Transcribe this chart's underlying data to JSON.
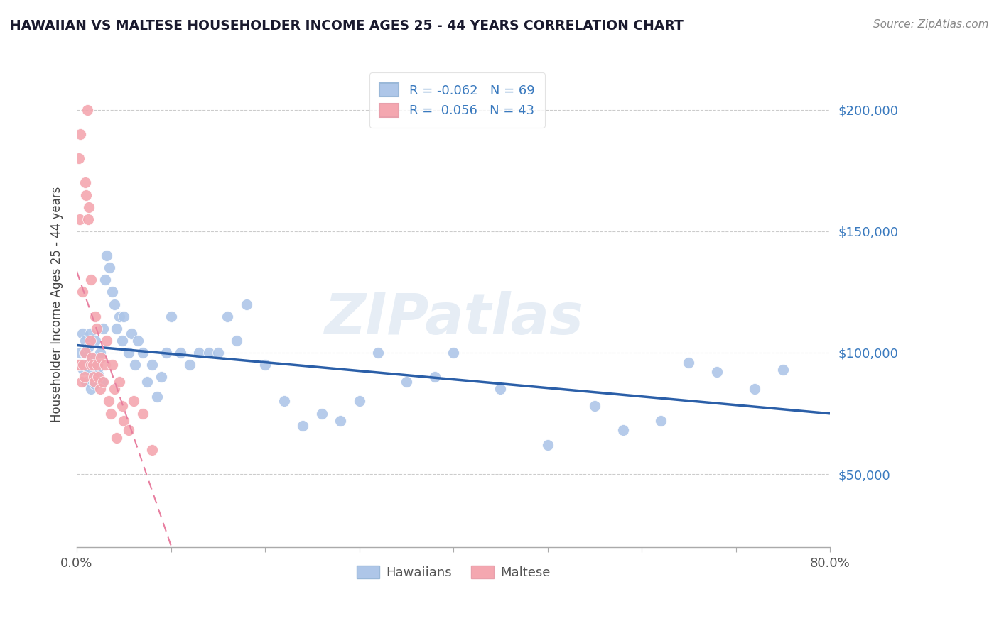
{
  "title": "HAWAIIAN VS MALTESE HOUSEHOLDER INCOME AGES 25 - 44 YEARS CORRELATION CHART",
  "source_text": "Source: ZipAtlas.com",
  "ylabel": "Householder Income Ages 25 - 44 years",
  "xlim": [
    0.0,
    0.8
  ],
  "ylim": [
    20000,
    220000
  ],
  "yticks": [
    50000,
    100000,
    150000,
    200000
  ],
  "ytick_labels": [
    "$50,000",
    "$100,000",
    "$150,000",
    "$200,000"
  ],
  "xticks": [
    0.0,
    0.1,
    0.2,
    0.3,
    0.4,
    0.5,
    0.6,
    0.7,
    0.8
  ],
  "xtick_labels": [
    "0.0%",
    "",
    "",
    "",
    "",
    "",
    "",
    "",
    "80.0%"
  ],
  "hawaiians_color": "#aec6e8",
  "maltese_color": "#f4a7b0",
  "hawaiians_line_color": "#2b5fa8",
  "maltese_line_color": "#e87fa0",
  "r_hawaiians": -0.062,
  "n_hawaiians": 69,
  "r_maltese": 0.056,
  "n_maltese": 43,
  "watermark": "ZIPatlas",
  "hawaiians_x": [
    0.004,
    0.005,
    0.006,
    0.007,
    0.008,
    0.009,
    0.01,
    0.011,
    0.012,
    0.013,
    0.014,
    0.015,
    0.016,
    0.017,
    0.018,
    0.019,
    0.02,
    0.022,
    0.023,
    0.025,
    0.027,
    0.028,
    0.03,
    0.032,
    0.035,
    0.038,
    0.04,
    0.042,
    0.045,
    0.048,
    0.05,
    0.055,
    0.058,
    0.062,
    0.065,
    0.07,
    0.075,
    0.08,
    0.085,
    0.09,
    0.095,
    0.1,
    0.11,
    0.12,
    0.13,
    0.14,
    0.15,
    0.16,
    0.17,
    0.18,
    0.2,
    0.22,
    0.24,
    0.26,
    0.28,
    0.3,
    0.32,
    0.35,
    0.38,
    0.4,
    0.45,
    0.5,
    0.55,
    0.58,
    0.62,
    0.65,
    0.68,
    0.72,
    0.75
  ],
  "hawaiians_y": [
    100000,
    95000,
    108000,
    93000,
    100000,
    105000,
    88000,
    95000,
    102000,
    93000,
    108000,
    85000,
    98000,
    90000,
    96000,
    87000,
    105000,
    93000,
    91000,
    100000,
    88000,
    110000,
    130000,
    140000,
    135000,
    125000,
    120000,
    110000,
    115000,
    105000,
    115000,
    100000,
    108000,
    95000,
    105000,
    100000,
    88000,
    95000,
    82000,
    90000,
    100000,
    115000,
    100000,
    95000,
    100000,
    100000,
    100000,
    115000,
    105000,
    120000,
    95000,
    80000,
    70000,
    75000,
    72000,
    80000,
    100000,
    88000,
    90000,
    100000,
    85000,
    62000,
    78000,
    68000,
    72000,
    96000,
    92000,
    85000,
    93000
  ],
  "maltese_x": [
    0.001,
    0.002,
    0.003,
    0.003,
    0.004,
    0.005,
    0.006,
    0.007,
    0.008,
    0.009,
    0.009,
    0.01,
    0.011,
    0.012,
    0.013,
    0.014,
    0.015,
    0.015,
    0.016,
    0.017,
    0.018,
    0.019,
    0.02,
    0.021,
    0.022,
    0.023,
    0.025,
    0.026,
    0.028,
    0.03,
    0.032,
    0.034,
    0.036,
    0.038,
    0.04,
    0.042,
    0.045,
    0.048,
    0.05,
    0.055,
    0.06,
    0.07,
    0.08
  ],
  "maltese_y": [
    95000,
    180000,
    155000,
    95000,
    190000,
    88000,
    125000,
    95000,
    90000,
    170000,
    100000,
    165000,
    200000,
    155000,
    160000,
    105000,
    95000,
    130000,
    98000,
    95000,
    90000,
    88000,
    115000,
    110000,
    95000,
    90000,
    85000,
    98000,
    88000,
    95000,
    105000,
    80000,
    75000,
    95000,
    85000,
    65000,
    88000,
    78000,
    72000,
    68000,
    80000,
    75000,
    60000
  ]
}
